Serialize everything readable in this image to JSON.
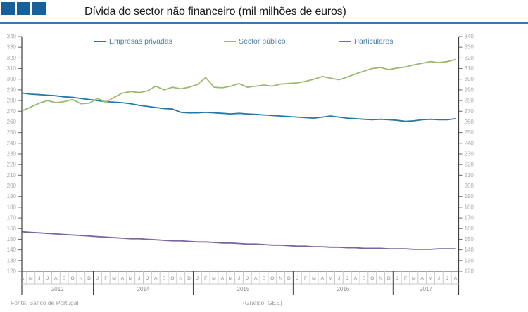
{
  "header": {
    "title": "Dívida do sector não financeiro (mil milhões de euros)",
    "brand_color": "#15619E",
    "rule_color": "#3878B4"
  },
  "footer": {
    "source": "Fonte: Banco de Portugal",
    "credit": "(Gráfico: GEE)"
  },
  "chart_data": {
    "type": "line",
    "title": "Dívida do sector não financeiro (mil milhões de euros)",
    "ylabel": "",
    "xlabel": "",
    "ylim": [
      120,
      340
    ],
    "ytick_step": 10,
    "grid": false,
    "legend_position": "top",
    "axis_color": "#3f3f3f",
    "tick_label_color": "#ABABAB",
    "month_label_color": "#8C8C8C",
    "separator_color": "#C9C9C9",
    "sections": [
      {
        "year": "2012",
        "months": [
          "A",
          "M",
          "J",
          "J",
          "A",
          "S",
          "O",
          "N",
          "D"
        ]
      },
      {
        "year": "2014",
        "months": [
          "J",
          "F",
          "M",
          "A",
          "M",
          "J",
          "J",
          "A",
          "S",
          "O",
          "N",
          "D"
        ]
      },
      {
        "year": "2015",
        "months": [
          "J",
          "F",
          "M",
          "A",
          "M",
          "J",
          "J",
          "A",
          "S",
          "O",
          "N",
          "D"
        ]
      },
      {
        "year": "2016",
        "months": [
          "J",
          "F",
          "M",
          "A",
          "M",
          "J",
          "J",
          "A",
          "S",
          "O",
          "N",
          "D"
        ]
      },
      {
        "year": "2017",
        "months": [
          "J",
          "F",
          "M",
          "A",
          "M",
          "J",
          "J",
          "A"
        ]
      }
    ],
    "series": [
      {
        "name": "Empresas privadas",
        "color": "#2279A9",
        "values": [
          287,
          286,
          285.5,
          285,
          284.5,
          283.5,
          283,
          282,
          281,
          280,
          279,
          278.5,
          278,
          277,
          275.5,
          274.5,
          273.5,
          272.5,
          272,
          269,
          268.5,
          268.5,
          269,
          268.5,
          268,
          267.5,
          268,
          267.5,
          267,
          266.5,
          266,
          265.5,
          265,
          264.5,
          264,
          263.5,
          264.5,
          265.5,
          264.5,
          263.5,
          263,
          262.5,
          262,
          262.5,
          262,
          261.5,
          260.5,
          261,
          262,
          262.5,
          262,
          262,
          263
        ]
      },
      {
        "name": "Sector público",
        "color": "#9CBA6D",
        "values": [
          270.5,
          274,
          277.5,
          280,
          278,
          279,
          281,
          277,
          277.5,
          282,
          278.5,
          283,
          287,
          288.5,
          287.5,
          289,
          293.5,
          290,
          292.5,
          291,
          292.5,
          295,
          301.5,
          292.5,
          292,
          293.5,
          296,
          292.5,
          293.5,
          294.5,
          293.5,
          295.5,
          296,
          296.5,
          298,
          300,
          302.5,
          301,
          299.5,
          302,
          305,
          307.5,
          310,
          311,
          309,
          310.5,
          311.5,
          313.5,
          315,
          316.5,
          315.5,
          316.5,
          318.5
        ]
      },
      {
        "name": "Particulares",
        "color": "#7A65A3",
        "values": [
          157,
          156.5,
          156,
          155.5,
          155,
          154.5,
          154,
          153.5,
          153,
          152.5,
          152,
          151.5,
          151,
          150.5,
          150.5,
          150,
          149.5,
          149,
          148.5,
          148.5,
          148,
          147.5,
          147.5,
          147,
          146.5,
          146.5,
          146,
          145.5,
          145.5,
          145,
          144.5,
          144.5,
          144,
          143.5,
          143.5,
          143,
          143,
          142.5,
          142.5,
          142,
          142,
          141.5,
          141.5,
          141.5,
          141,
          141,
          141,
          140.5,
          140.5,
          140.5,
          141,
          141,
          141
        ]
      }
    ]
  }
}
